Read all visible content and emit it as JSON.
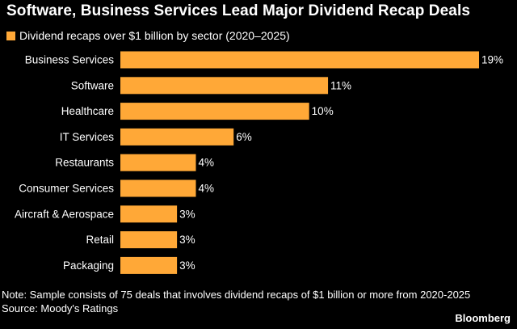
{
  "colors": {
    "background": "#000000",
    "bar": "#FFA837",
    "text": "#FFFFFF"
  },
  "chart_data": {
    "type": "bar",
    "orientation": "horizontal",
    "title": "Software, Business Services Lead Major Dividend Recap Deals",
    "legend": {
      "label": "Dividend recaps over $1 billion by sector (2020–2025)",
      "placement": "top-left"
    },
    "categories": [
      "Business Services",
      "Software",
      "Healthcare",
      "IT Services",
      "Restaurants",
      "Consumer Services",
      "Aircraft & Aerospace",
      "Retail",
      "Packaging"
    ],
    "values": [
      19,
      11,
      10,
      6,
      4,
      4,
      3,
      3,
      3
    ],
    "value_labels": [
      "19%",
      "11%",
      "10%",
      "6%",
      "4%",
      "4%",
      "3%",
      "3%",
      "3%"
    ],
    "unit": "%",
    "xlim": [
      0,
      19
    ],
    "grid": false,
    "note": "Note: Sample consists of 75 deals that involves dividend recaps of $1 billion or more from 2020-2025",
    "source": "Source: Moody's Ratings",
    "brand": "Bloomberg"
  }
}
